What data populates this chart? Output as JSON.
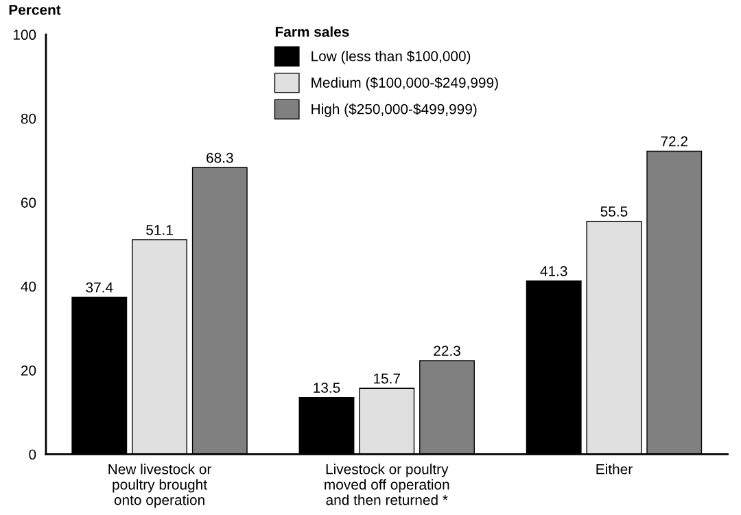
{
  "chart_data": {
    "type": "bar",
    "ylabel": "Percent",
    "legend_title": "Farm sales",
    "categories": [
      "New livestock or\npoultry brought\nonto operation",
      "Livestock or poultry\nmoved off operation\nand then returned *",
      "Either"
    ],
    "series": [
      {
        "name": "Low (less than $100,000)",
        "color": "#000000",
        "values": [
          37.4,
          13.5,
          41.3
        ]
      },
      {
        "name": "Medium ($100,000-$249,999)",
        "color": "#e0e0e0",
        "values": [
          51.1,
          15.7,
          55.5
        ]
      },
      {
        "name": "High ($250,000-$499,999)",
        "color": "#808080",
        "values": [
          68.3,
          22.3,
          72.2
        ]
      }
    ],
    "ylim": [
      0,
      100
    ],
    "yticks": [
      0,
      20,
      40,
      60,
      80,
      100
    ],
    "data_labels": true,
    "grid": false,
    "legend": "top"
  }
}
